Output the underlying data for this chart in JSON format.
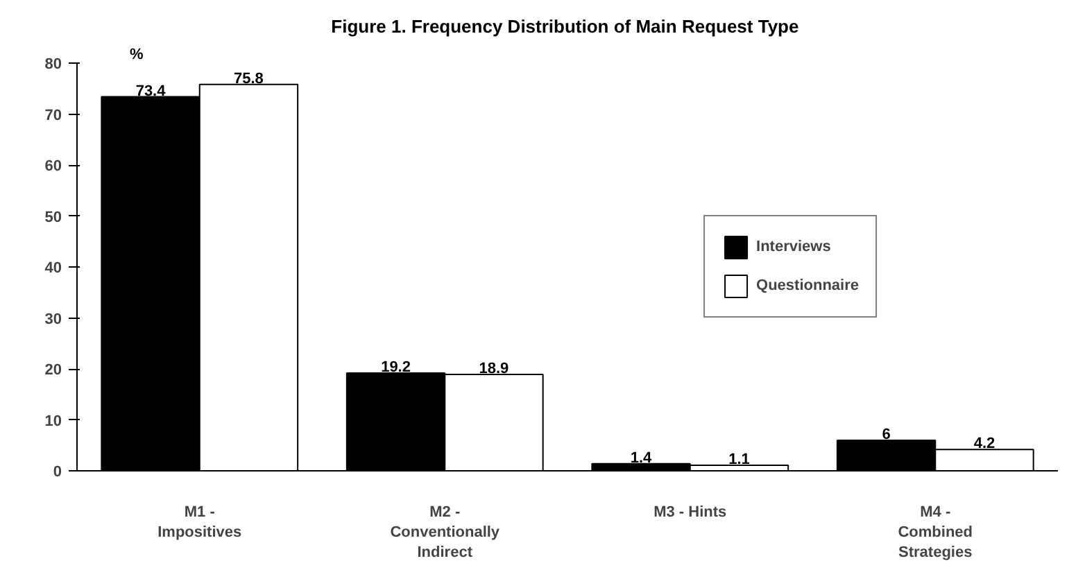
{
  "chart_data": {
    "type": "bar",
    "title": "Figure 1.  Frequency Distribution of Main Request Type",
    "ylabel": "%",
    "categories": [
      "M1 -\nImpositives",
      "M2 -\nConventionally\nIndirect",
      "M3 - Hints",
      "M4 -\nCombined\nStrategies"
    ],
    "series": [
      {
        "name": "Interviews",
        "color": "#000000",
        "values": [
          73.4,
          19.2,
          1.4,
          6
        ]
      },
      {
        "name": "Questionnaire",
        "color": "#ffffff",
        "values": [
          75.8,
          18.9,
          1.1,
          4.2
        ]
      }
    ],
    "ylim": [
      0,
      80
    ],
    "yticks": [
      0,
      10,
      20,
      30,
      40,
      50,
      60,
      70,
      80
    ],
    "data_labels": true,
    "grid": false,
    "legend": "right"
  }
}
